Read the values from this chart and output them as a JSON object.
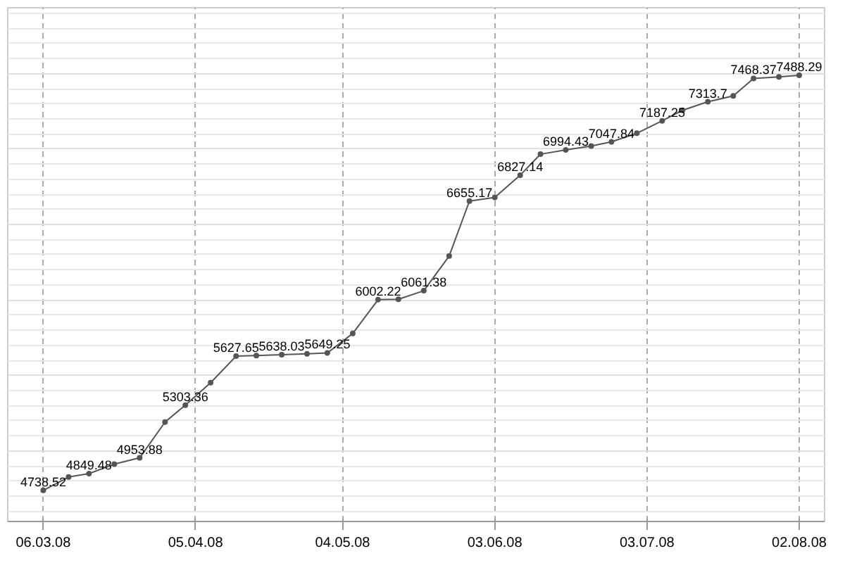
{
  "chart_data": {
    "type": "line",
    "x": [
      "2008-03-06",
      "2008-03-11",
      "2008-03-15",
      "2008-03-20",
      "2008-03-25",
      "2008-03-30",
      "2008-04-03",
      "2008-04-08",
      "2008-04-13",
      "2008-04-17",
      "2008-04-22",
      "2008-04-27",
      "2008-05-01",
      "2008-05-06",
      "2008-05-11",
      "2008-05-15",
      "2008-05-20",
      "2008-05-25",
      "2008-05-29",
      "2008-06-03",
      "2008-06-08",
      "2008-06-12",
      "2008-06-17",
      "2008-06-22",
      "2008-06-26",
      "2008-07-01",
      "2008-07-06",
      "2008-07-10",
      "2008-07-15",
      "2008-07-20",
      "2008-07-24",
      "2008-07-29",
      "2008-08-02"
    ],
    "series": [
      {
        "color": "#555555",
        "values": [
          4738.52,
          4827,
          4849.48,
          4912,
          4953.88,
          5191,
          5303.36,
          5452,
          5627.65,
          5632,
          5638.03,
          5643,
          5649.25,
          5778,
          6002.22,
          6005,
          6061.38,
          6291,
          6655.17,
          6680,
          6827.14,
          6966,
          6994.43,
          7020,
          7047.84,
          7105,
          7187.25,
          7257,
          7313.7,
          7352,
          7468.37,
          7478,
          7488.29
        ],
        "value_labels": [
          "4738.52",
          null,
          "4849.48",
          null,
          "4953.88",
          null,
          "5303.36",
          null,
          "5627.65",
          null,
          "5638.03",
          null,
          "5649.25",
          null,
          "6002.22",
          null,
          "6061.38",
          null,
          "6655.17",
          null,
          "6827.14",
          null,
          "6994.43",
          null,
          "7047.84",
          null,
          "7187.25",
          null,
          "7313.7",
          null,
          "7468.37",
          null,
          "7488.29"
        ]
      }
    ],
    "xlim": [
      "2008-02-28",
      "2008-08-07"
    ],
    "xticks": [
      {
        "value": "2008-03-06",
        "label": "06.03.08"
      },
      {
        "value": "2008-04-05",
        "label": "05.04.08"
      },
      {
        "value": "2008-05-04",
        "label": "04.05.08"
      },
      {
        "value": "2008-06-03",
        "label": "03.06.08"
      },
      {
        "value": "2008-07-03",
        "label": "03.07.08"
      },
      {
        "value": "2008-08-02",
        "label": "02.08.08"
      }
    ],
    "tick_labels": "x",
    "grid": true,
    "marker": "circle",
    "line_style": "solid"
  }
}
